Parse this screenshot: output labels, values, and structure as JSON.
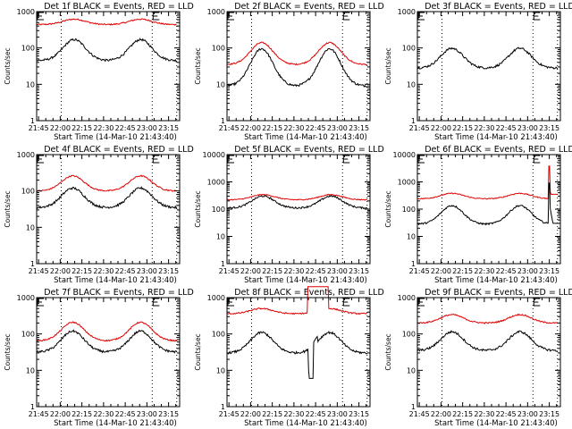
{
  "figure": {
    "layout": "3x3 grid",
    "background": "#ffffff",
    "series_colors": {
      "events": "#000000",
      "lld": "#e00000"
    }
  },
  "chart_data": [
    {
      "type": "line",
      "title": "Det 1f BLACK = Events, RED = LLD",
      "xlabel": "Start Time (14-Mar-10 21:43:40)",
      "ylabel": "Counts/sec",
      "yscale": "log",
      "ylim": [
        1,
        1000
      ],
      "yticks": [
        "1",
        "10",
        "100",
        "1000"
      ],
      "xticks": [
        "21:45",
        "22:00",
        "22:15",
        "22:30",
        "22:45",
        "23:00",
        "23:15"
      ],
      "xlim_minutes": [
        0,
        99
      ],
      "vlines_minutes": [
        17,
        80,
        97
      ],
      "markers": [
        {
          "label": "E",
          "minute": 0
        },
        {
          "label": "E",
          "minute": 80
        }
      ],
      "series": [
        {
          "name": "Events",
          "color": "#000000",
          "base": 45,
          "peak": 170,
          "peaks_minutes": [
            26,
            72
          ]
        },
        {
          "name": "LLD",
          "color": "#e00000",
          "base": 440,
          "peak": 620,
          "peaks_minutes": [
            26,
            72
          ]
        }
      ]
    },
    {
      "type": "line",
      "title": "Det 2f BLACK = Events, RED = LLD",
      "xlabel": "Start Time (14-Mar-10 21:43:40)",
      "ylabel": "Counts/sec",
      "yscale": "log",
      "ylim": [
        1,
        1000
      ],
      "yticks": [
        "1",
        "10",
        "100",
        "1000"
      ],
      "xticks": [
        "21:45",
        "22:00",
        "22:15",
        "22:30",
        "22:45",
        "23:00",
        "23:15"
      ],
      "xlim_minutes": [
        0,
        99
      ],
      "vlines_minutes": [
        17,
        80,
        97
      ],
      "markers": [
        {
          "label": "E",
          "minute": 0
        },
        {
          "label": "E",
          "minute": 80
        }
      ],
      "series": [
        {
          "name": "Events",
          "color": "#000000",
          "base": 9,
          "peak": 95,
          "peaks_minutes": [
            24,
            71
          ]
        },
        {
          "name": "LLD",
          "color": "#e00000",
          "base": 35,
          "peak": 140,
          "peaks_minutes": [
            24,
            71
          ]
        }
      ]
    },
    {
      "type": "line",
      "title": "Det 3f BLACK = Events, RED = LLD",
      "xlabel": "Start Time (14-Mar-10 21:43:40)",
      "ylabel": "Counts/sec",
      "yscale": "log",
      "ylim": [
        1,
        1000
      ],
      "yticks": [
        "1",
        "10",
        "100",
        "1000"
      ],
      "xticks": [
        "21:45",
        "22:00",
        "22:15",
        "22:30",
        "22:45",
        "23:00",
        "23:15"
      ],
      "xlim_minutes": [
        0,
        99
      ],
      "vlines_minutes": [
        17,
        80,
        97
      ],
      "markers": [
        {
          "label": "E",
          "minute": 0
        },
        {
          "label": "E",
          "minute": 80
        }
      ],
      "series": [
        {
          "name": "Events",
          "color": "#000000",
          "base": 28,
          "peak": 98,
          "peaks_minutes": [
            24,
            71
          ]
        }
      ]
    },
    {
      "type": "line",
      "title": "Det 4f BLACK = Events, RED = LLD",
      "xlabel": "Start Time (14-Mar-10 21:43:40)",
      "ylabel": "Counts/sec",
      "yscale": "log",
      "ylim": [
        1,
        1000
      ],
      "yticks": [
        "1",
        "10",
        "100",
        "1000"
      ],
      "xticks": [
        "21:45",
        "22:00",
        "22:15",
        "22:30",
        "22:45",
        "23:00",
        "23:15"
      ],
      "xlim_minutes": [
        0,
        99
      ],
      "vlines_minutes": [
        17,
        80,
        97
      ],
      "markers": [
        {
          "label": "E",
          "minute": 0
        },
        {
          "label": "E",
          "minute": 80
        }
      ],
      "series": [
        {
          "name": "Events",
          "color": "#000000",
          "base": 35,
          "peak": 120,
          "peaks_minutes": [
            25,
            72
          ]
        },
        {
          "name": "LLD",
          "color": "#e00000",
          "base": 100,
          "peak": 260,
          "peaks_minutes": [
            25,
            72
          ]
        }
      ]
    },
    {
      "type": "line",
      "title": "Det 5f BLACK = Events, RED = LLD",
      "xlabel": "Start Time (14-Mar-10 21:43:40)",
      "ylabel": "Counts/sec",
      "yscale": "log",
      "ylim": [
        1,
        10000
      ],
      "yticks": [
        "1",
        "10",
        "100",
        "1000",
        "10000"
      ],
      "xticks": [
        "21:45",
        "22:00",
        "22:15",
        "22:30",
        "22:45",
        "23:00",
        "23:15"
      ],
      "xlim_minutes": [
        0,
        99
      ],
      "vlines_minutes": [
        17,
        80,
        97
      ],
      "markers": [
        {
          "label": "E",
          "minute": 0
        },
        {
          "label": "E",
          "minute": 80
        }
      ],
      "series": [
        {
          "name": "Events",
          "color": "#000000",
          "base": 110,
          "peak": 300,
          "peaks_minutes": [
            25,
            72
          ]
        },
        {
          "name": "LLD",
          "color": "#e00000",
          "base": 220,
          "peak": 340,
          "peaks_minutes": [
            25,
            72
          ]
        }
      ]
    },
    {
      "type": "line",
      "title": "Det 6f BLACK = Events, RED = LLD",
      "xlabel": "Start Time (14-Mar-10 21:43:40)",
      "ylabel": "Counts/sec",
      "yscale": "log",
      "ylim": [
        1,
        10000
      ],
      "yticks": [
        "1",
        "10",
        "100",
        "1000",
        "10000"
      ],
      "xticks": [
        "21:45",
        "22:00",
        "22:15",
        "22:30",
        "22:45",
        "23:00",
        "23:15"
      ],
      "xlim_minutes": [
        0,
        99
      ],
      "vlines_minutes": [
        17,
        80,
        97
      ],
      "markers": [
        {
          "label": "E",
          "minute": 0
        },
        {
          "label": "E",
          "minute": 80
        }
      ],
      "spike": {
        "minute": 91,
        "events_peak": 900,
        "lld_peak": 3800
      },
      "series": [
        {
          "name": "Events",
          "color": "#000000",
          "base": 28,
          "peak": 135,
          "peaks_minutes": [
            24,
            71
          ]
        },
        {
          "name": "LLD",
          "color": "#e00000",
          "base": 240,
          "peak": 380,
          "peaks_minutes": [
            24,
            71
          ]
        }
      ]
    },
    {
      "type": "line",
      "title": "Det 7f BLACK = Events, RED = LLD",
      "xlabel": "Start Time (14-Mar-10 21:43:40)",
      "ylabel": "Counts/sec",
      "yscale": "log",
      "ylim": [
        1,
        1000
      ],
      "yticks": [
        "1",
        "10",
        "100",
        "1000"
      ],
      "xticks": [
        "21:45",
        "22:00",
        "22:15",
        "22:30",
        "22:45",
        "23:00",
        "23:15"
      ],
      "xlim_minutes": [
        0,
        99
      ],
      "vlines_minutes": [
        17,
        80,
        97
      ],
      "markers": [
        {
          "label": "E",
          "minute": 0
        },
        {
          "label": "E",
          "minute": 80
        }
      ],
      "series": [
        {
          "name": "Events",
          "color": "#000000",
          "base": 32,
          "peak": 120,
          "peaks_minutes": [
            25,
            72
          ]
        },
        {
          "name": "LLD",
          "color": "#e00000",
          "base": 65,
          "peak": 210,
          "peaks_minutes": [
            25,
            72
          ]
        }
      ]
    },
    {
      "type": "line",
      "title": "Det 8f BLACK = Events, RED = LLD",
      "xlabel": "Start Time (14-Mar-10 21:43:40)",
      "ylabel": "Counts/sec",
      "yscale": "log",
      "ylim": [
        1,
        1000
      ],
      "yticks": [
        "1",
        "10",
        "100",
        "1000"
      ],
      "xticks": [
        "21:45",
        "22:00",
        "22:15",
        "22:30",
        "22:45",
        "23:00",
        "23:15"
      ],
      "xlim_minutes": [
        0,
        99
      ],
      "vlines_minutes": [
        17,
        80,
        97
      ],
      "markers": [
        {
          "label": "E",
          "minute": 0
        },
        {
          "label": "E",
          "minute": 80
        }
      ],
      "gap_minutes": [
        56,
        70
      ],
      "series": [
        {
          "name": "Events",
          "color": "#000000",
          "base": 30,
          "peak": 110,
          "peaks_minutes": [
            24,
            71
          ]
        },
        {
          "name": "LLD",
          "color": "#e00000",
          "base": 360,
          "peak": 500,
          "peaks_minutes": [
            24,
            71
          ]
        }
      ]
    },
    {
      "type": "line",
      "title": "Det 9f BLACK = Events, RED = LLD",
      "xlabel": "Start Time (14-Mar-10 21:43:40)",
      "ylabel": "Counts/sec",
      "yscale": "log",
      "ylim": [
        1,
        1000
      ],
      "yticks": [
        "1",
        "10",
        "100",
        "1000"
      ],
      "xticks": [
        "21:45",
        "22:00",
        "22:15",
        "22:30",
        "22:45",
        "23:00",
        "23:15"
      ],
      "xlim_minutes": [
        0,
        99
      ],
      "vlines_minutes": [
        17,
        80,
        97
      ],
      "markers": [
        {
          "label": "E",
          "minute": 0
        },
        {
          "label": "E",
          "minute": 80
        }
      ],
      "series": [
        {
          "name": "Events",
          "color": "#000000",
          "base": 35,
          "peak": 115,
          "peaks_minutes": [
            24,
            71
          ]
        },
        {
          "name": "LLD",
          "color": "#e00000",
          "base": 200,
          "peak": 340,
          "peaks_minutes": [
            24,
            71
          ]
        }
      ]
    }
  ]
}
